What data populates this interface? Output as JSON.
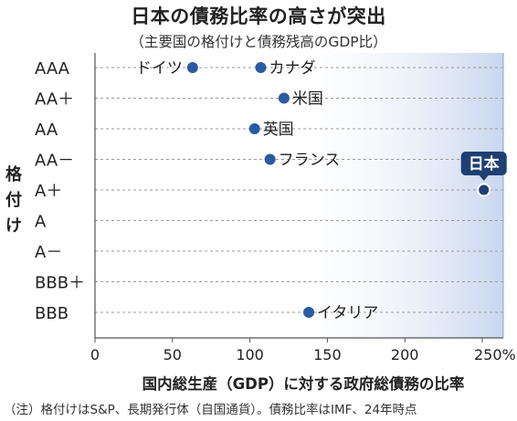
{
  "title": "日本の債務比率の高さが突出",
  "subtitle": "（主要国の格付けと債務残高のGDP比）",
  "note": "（注）格付けはS&P、長期発行体（自国通貨）。債務比率はIMF、24年時点",
  "colors": {
    "point": "#2a5aa3",
    "highlight": "#1f3f73",
    "shade": "#c9d6ee"
  },
  "chart_data": {
    "type": "scatter",
    "ylabel": "格付け",
    "xlabel": "国内総生産（GDP）に対する政府総債務の比率",
    "xlim": [
      0,
      250
    ],
    "xticks": [
      0,
      50,
      100,
      150,
      200,
      250
    ],
    "xtick_labels": [
      "0",
      "50",
      "100",
      "150",
      "200",
      "250%"
    ],
    "categories": [
      "AAA",
      "AA＋",
      "AA",
      "AA－",
      "A＋",
      "A",
      "A－",
      "BBB＋",
      "BBB"
    ],
    "grid": "horizontal-dashed",
    "points": [
      {
        "label": "ドイツ",
        "x": 63,
        "y": "AAA",
        "label_side": "left"
      },
      {
        "label": "カナダ",
        "x": 107,
        "y": "AAA",
        "label_side": "right"
      },
      {
        "label": "米国",
        "x": 122,
        "y": "AA＋",
        "label_side": "right"
      },
      {
        "label": "英国",
        "x": 103,
        "y": "AA",
        "label_side": "right"
      },
      {
        "label": "フランス",
        "x": 113,
        "y": "AA－",
        "label_side": "right"
      },
      {
        "label": "日本",
        "x": 251,
        "y": "A＋",
        "label_side": "above",
        "highlight": true
      },
      {
        "label": "イタリア",
        "x": 138,
        "y": "BBB",
        "label_side": "right"
      }
    ]
  }
}
